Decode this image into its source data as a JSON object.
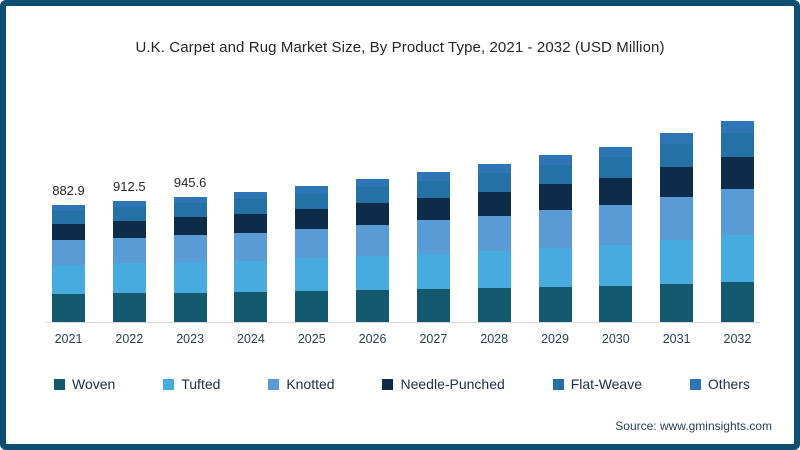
{
  "frame": {
    "border_color": "#0d4e73",
    "background": "#ffffff"
  },
  "title": "U.K. Carpet and Rug Market Size, By Product Type, 2021 - 2032 (USD Million)",
  "source": "Source: www.gminsights.com",
  "chart_data": {
    "type": "bar",
    "stacked": true,
    "title": "U.K. Carpet and Rug Market Size, By Product Type, 2021 - 2032 (USD Million)",
    "unit": "USD Million",
    "grid": false,
    "legend_position": "bottom",
    "xlabel": "",
    "ylabel": "",
    "categories": [
      "2021",
      "2022",
      "2023",
      "2024",
      "2025",
      "2026",
      "2027",
      "2028",
      "2029",
      "2030",
      "2031",
      "2032"
    ],
    "bar_labels": [
      "882.9",
      "912.5",
      "945.6",
      "",
      "",
      "",
      "",
      "",
      "",
      "",
      "",
      ""
    ],
    "labeled_totals": {
      "2021": 882.9,
      "2022": 912.5,
      "2023": 945.6
    },
    "series": [
      {
        "name": "Woven",
        "color": "#15596f",
        "values": [
          212.0,
          215.7,
          220.1,
          224.5,
          231.1,
          239.6,
          246.6,
          255.3,
          265.7,
          273.6,
          290.1,
          304.0
        ]
      },
      {
        "name": "Tufted",
        "color": "#47abdf",
        "values": [
          220.7,
          226.5,
          233.0,
          239.7,
          248.8,
          260.2,
          270.2,
          282.4,
          296.7,
          308.4,
          330.3,
          349.6
        ]
      },
      {
        "name": "Knotted",
        "color": "#5b9bd5",
        "values": [
          185.4,
          193.3,
          202.0,
          211.2,
          222.7,
          236.6,
          249.6,
          265.0,
          282.9,
          298.8,
          325.2,
          349.6
        ]
      },
      {
        "name": "Needle-Punched",
        "color": "#0e2b49",
        "values": [
          123.6,
          129.4,
          135.8,
          142.6,
          151.0,
          161.0,
          170.5,
          181.7,
          194.7,
          206.4,
          225.4,
          243.2
        ]
      },
      {
        "name": "Flat-Weave",
        "color": "#2471a5",
        "values": [
          97.1,
          101.2,
          105.7,
          110.5,
          116.5,
          123.7,
          130.5,
          138.5,
          147.8,
          156.0,
          169.7,
          182.4
        ]
      },
      {
        "name": "Others",
        "color": "#2e75b6",
        "values": [
          44.1,
          46.4,
          49.0,
          51.7,
          55.0,
          58.9,
          62.7,
          67.1,
          72.2,
          76.8,
          84.2,
          91.2
        ]
      }
    ]
  }
}
